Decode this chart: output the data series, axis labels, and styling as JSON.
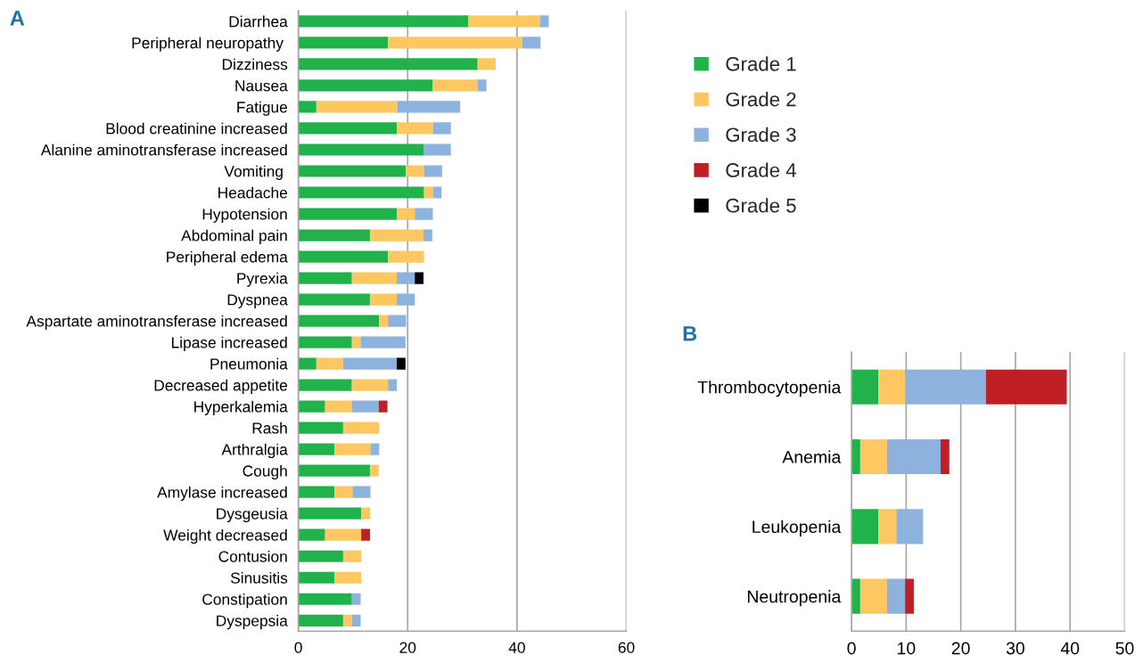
{
  "chart_data": [
    {
      "type": "bar",
      "title": "A",
      "orientation": "horizontal",
      "stacked": true,
      "grid": "x",
      "legend": "right",
      "categories": [
        "Diarrhea",
        "Peripheral neuropathy ",
        "Dizziness",
        "Nausea",
        "Fatigue",
        "Blood creatinine increased",
        "Alanine aminotransferase increased",
        "Vomiting ",
        "Headache",
        "Hypotension",
        "Abdominal pain",
        "Peripheral edema",
        "Pyrexia",
        "Dyspnea",
        "Aspartate aminotransferase increased",
        "Lipase increased",
        "Pneumonia",
        "Decreased appetite",
        "Hyperkalemia",
        "Rash",
        "Arthralgia",
        "Cough",
        "Amylase increased",
        "Dysgeusia",
        "Weight decreased",
        "Contusion",
        "Sinusitis",
        "Constipation",
        "Dyspepsia"
      ],
      "xlim": [
        0,
        60
      ],
      "xticks": [
        0,
        20,
        40,
        60
      ],
      "series": [
        {
          "name": "Grade 1",
          "color": "#21b24b",
          "values": [
            31.1,
            16.4,
            32.8,
            24.6,
            3.3,
            18.0,
            23.0,
            19.7,
            23.0,
            18.0,
            13.1,
            16.4,
            9.8,
            13.1,
            14.8,
            9.8,
            3.3,
            9.8,
            4.9,
            8.2,
            6.6,
            13.1,
            6.6,
            11.5,
            4.9,
            8.2,
            6.6,
            9.8,
            8.2
          ]
        },
        {
          "name": "Grade 2",
          "color": "#fec762",
          "values": [
            13.1,
            24.6,
            3.3,
            8.2,
            14.8,
            6.6,
            0,
            3.3,
            1.6,
            3.3,
            9.8,
            6.6,
            8.2,
            4.9,
            1.6,
            1.6,
            4.9,
            6.6,
            4.9,
            6.6,
            6.6,
            1.6,
            3.3,
            1.6,
            6.6,
            3.3,
            4.9,
            0,
            1.6
          ]
        },
        {
          "name": "Grade 3",
          "color": "#8db2de",
          "values": [
            1.6,
            3.3,
            0,
            1.6,
            11.5,
            3.3,
            4.9,
            3.3,
            1.6,
            3.3,
            1.6,
            0,
            3.3,
            3.3,
            3.3,
            8.2,
            9.8,
            1.6,
            4.9,
            0,
            1.6,
            0,
            3.3,
            0,
            0,
            0,
            0,
            1.6,
            1.6
          ]
        },
        {
          "name": "Grade 4",
          "color": "#c01f26",
          "values": [
            0,
            0,
            0,
            0,
            0,
            0,
            0,
            0,
            0,
            0,
            0,
            0,
            0,
            0,
            0,
            0,
            0,
            0,
            1.6,
            0,
            0,
            0,
            0,
            0,
            1.6,
            0,
            0,
            0,
            0
          ]
        },
        {
          "name": "Grade 5",
          "color": "#000000",
          "values": [
            0,
            0,
            0,
            0,
            0,
            0,
            0,
            0,
            0,
            0,
            0,
            0,
            1.6,
            0,
            0,
            0,
            1.6,
            0,
            0,
            0,
            0,
            0,
            0,
            0,
            0,
            0,
            0,
            0,
            0
          ]
        }
      ]
    },
    {
      "type": "bar",
      "title": "B",
      "orientation": "horizontal",
      "stacked": true,
      "grid": "x",
      "categories": [
        "Thrombocytopenia",
        "Anemia",
        "Leukopenia",
        "Neutropenia"
      ],
      "xlim": [
        0,
        50
      ],
      "xticks": [
        0,
        10,
        20,
        30,
        40,
        50
      ],
      "series": [
        {
          "color": "#21b24b",
          "values": [
            4.9,
            1.6,
            4.9,
            1.6
          ]
        },
        {
          "color": "#fec762",
          "values": [
            4.9,
            4.9,
            3.3,
            4.9
          ]
        },
        {
          "color": "#8db2de",
          "values": [
            14.8,
            9.8,
            4.9,
            3.3
          ]
        },
        {
          "color": "#c01f26",
          "values": [
            14.8,
            1.6,
            0,
            1.6
          ]
        }
      ]
    }
  ]
}
